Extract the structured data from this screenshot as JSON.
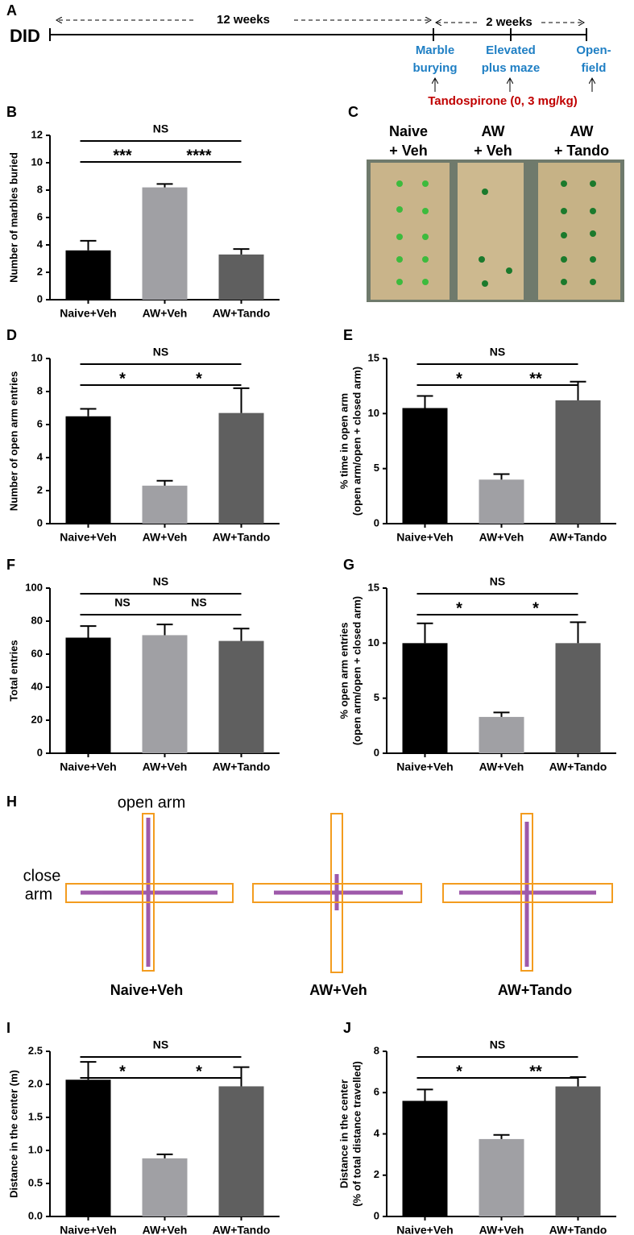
{
  "figure_a": {
    "label": "A",
    "group": "DID",
    "periods": [
      "12 weeks",
      "2 weeks"
    ],
    "tests": [
      [
        "Marble",
        "burying"
      ],
      [
        "Elevated",
        "plus maze"
      ],
      [
        "Open-",
        "field"
      ]
    ],
    "treatment": "Tandospirone (0, 3 mg/kg)"
  },
  "panel_c": {
    "label": "C",
    "groups": [
      [
        "Naive",
        "+ Veh"
      ],
      [
        "AW",
        "+ Veh"
      ],
      [
        "AW",
        "+ Tando"
      ]
    ]
  },
  "panel_h": {
    "label": "H",
    "open_arm": "open arm",
    "close_arm": [
      "close",
      "arm"
    ],
    "groups": [
      "Naive+Veh",
      "AW+Veh",
      "AW+Tando"
    ]
  },
  "chart_data": [
    {
      "type": "bar",
      "panel": "B",
      "ylabel": [
        "Number of marbles buried"
      ],
      "categories": [
        "Naive+Veh",
        "AW+Veh",
        "AW+Tando"
      ],
      "colors": [
        "#000000",
        "#a0a0a4",
        "#5f5f5f"
      ],
      "series": [
        {
          "values": [
            3.6,
            8.2,
            3.3
          ],
          "errors": [
            0.7,
            0.25,
            0.4
          ]
        }
      ],
      "ylim": [
        0,
        12
      ],
      "yticks": [
        0,
        2,
        4,
        6,
        8,
        10,
        12
      ],
      "significance": {
        "outer": "NS",
        "left": "***",
        "right": "****"
      }
    },
    {
      "type": "bar",
      "panel": "D",
      "ylabel": [
        "Number of open arm entries"
      ],
      "categories": [
        "Naive+Veh",
        "AW+Veh",
        "AW+Tando"
      ],
      "colors": [
        "#000000",
        "#a0a0a4",
        "#5f5f5f"
      ],
      "series": [
        {
          "values": [
            6.5,
            2.3,
            6.7
          ],
          "errors": [
            0.45,
            0.3,
            1.5
          ]
        }
      ],
      "ylim": [
        0,
        10
      ],
      "yticks": [
        0,
        2,
        4,
        6,
        8,
        10
      ],
      "significance": {
        "outer": "NS",
        "left": "*",
        "right": "*"
      }
    },
    {
      "type": "bar",
      "panel": "E",
      "ylabel": [
        "% time in open arm",
        "(open arm/open + closed arm)"
      ],
      "categories": [
        "Naive+Veh",
        "AW+Veh",
        "AW+Tando"
      ],
      "colors": [
        "#000000",
        "#a0a0a4",
        "#5f5f5f"
      ],
      "series": [
        {
          "values": [
            10.5,
            4.0,
            11.2
          ],
          "errors": [
            1.1,
            0.5,
            1.7
          ]
        }
      ],
      "ylim": [
        0,
        15
      ],
      "yticks": [
        0,
        5,
        10,
        15
      ],
      "significance": {
        "outer": "NS",
        "left": "*",
        "right": "**"
      }
    },
    {
      "type": "bar",
      "panel": "F",
      "ylabel": [
        "Total entries"
      ],
      "categories": [
        "Naive+Veh",
        "AW+Veh",
        "AW+Tando"
      ],
      "colors": [
        "#000000",
        "#a0a0a4",
        "#5f5f5f"
      ],
      "series": [
        {
          "values": [
            70,
            71.5,
            68
          ],
          "errors": [
            7,
            6.5,
            7.5
          ]
        }
      ],
      "ylim": [
        0,
        100
      ],
      "yticks": [
        0,
        20,
        40,
        60,
        80,
        100
      ],
      "significance": {
        "outer": "NS",
        "left": "NS",
        "right": "NS"
      }
    },
    {
      "type": "bar",
      "panel": "G",
      "ylabel": [
        "% open arm entries",
        "(open arm/open + closed arm)"
      ],
      "categories": [
        "Naive+Veh",
        "AW+Veh",
        "AW+Tando"
      ],
      "colors": [
        "#000000",
        "#a0a0a4",
        "#5f5f5f"
      ],
      "series": [
        {
          "values": [
            10,
            3.3,
            10
          ],
          "errors": [
            1.8,
            0.4,
            1.9
          ]
        }
      ],
      "ylim": [
        0,
        15
      ],
      "yticks": [
        0,
        5,
        10,
        15
      ],
      "significance": {
        "outer": "NS",
        "left": "*",
        "right": "*"
      }
    },
    {
      "type": "bar",
      "panel": "I",
      "ylabel": [
        "Distance in the center (m)"
      ],
      "categories": [
        "Naive+Veh",
        "AW+Veh",
        "AW+Tando"
      ],
      "colors": [
        "#000000",
        "#a0a0a4",
        "#5f5f5f"
      ],
      "series": [
        {
          "values": [
            2.07,
            0.88,
            1.97
          ],
          "errors": [
            0.27,
            0.06,
            0.29
          ]
        }
      ],
      "ylim": [
        0,
        2.5
      ],
      "yticks": [
        {
          "value": 0,
          "label": "0.0"
        },
        0.5,
        {
          "value": 1,
          "label": "1.0"
        },
        1.5,
        {
          "value": 2,
          "label": "2.0"
        },
        2.5
      ],
      "significance": {
        "outer": "NS",
        "left": "*",
        "right": "*"
      }
    },
    {
      "type": "bar",
      "panel": "J",
      "ylabel": [
        "Distance in the center",
        "(% of total distance travelled)"
      ],
      "categories": [
        "Naive+Veh",
        "AW+Veh",
        "AW+Tando"
      ],
      "colors": [
        "#000000",
        "#a0a0a4",
        "#5f5f5f"
      ],
      "series": [
        {
          "values": [
            5.6,
            3.75,
            6.3
          ],
          "errors": [
            0.55,
            0.2,
            0.45
          ]
        }
      ],
      "ylim": [
        0,
        8
      ],
      "yticks": [
        0,
        2,
        4,
        6,
        8
      ],
      "significance": {
        "outer": "NS",
        "left": "*",
        "right": "**"
      }
    }
  ]
}
